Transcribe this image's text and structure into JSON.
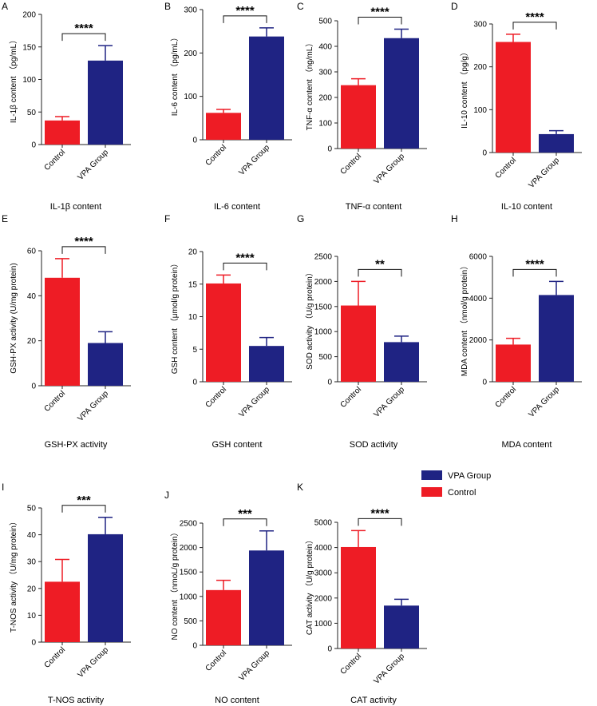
{
  "colors": {
    "control": "#ee1c25",
    "vpa": "#1f2383",
    "axis": "#222222"
  },
  "legend": {
    "items": [
      {
        "label": "VPA Group",
        "color": "#1f2383"
      },
      {
        "label": "Control",
        "color": "#ee1c25"
      }
    ]
  },
  "chart_data": [
    {
      "type": "bar",
      "panel": "A",
      "title": "IL-1β content",
      "ylabel": "IL-1β content  （pg/mL）",
      "categories": [
        "Control",
        "VPA Group"
      ],
      "values": [
        37,
        129
      ],
      "errors": [
        6,
        23
      ],
      "ylim": [
        0,
        200
      ],
      "yticks": [
        "0",
        "50",
        "100",
        "150",
        "200"
      ],
      "significance": "****"
    },
    {
      "type": "bar",
      "panel": "B",
      "title": "IL-6 content",
      "ylabel": "IL-6 content  （pg/mL）",
      "categories": [
        "Control",
        "VPA Group"
      ],
      "values": [
        62,
        238
      ],
      "errors": [
        8,
        20
      ],
      "ylim": [
        0,
        300
      ],
      "yticks": [
        "0",
        "100",
        "200",
        "300"
      ],
      "significance": "****"
    },
    {
      "type": "bar",
      "panel": "C",
      "title": "TNF-α content",
      "ylabel": "TNF-α content  （ng/mL）",
      "categories": [
        "Control",
        "VPA Group"
      ],
      "values": [
        248,
        432
      ],
      "errors": [
        25,
        35
      ],
      "ylim": [
        0,
        500
      ],
      "yticks": [
        "0",
        "100",
        "200",
        "300",
        "400",
        "500"
      ],
      "significance": "****"
    },
    {
      "type": "bar",
      "panel": "D",
      "title": "IL-10 content",
      "ylabel": "IL-10 content  （pg/g）",
      "categories": [
        "Control",
        "VPA Group"
      ],
      "values": [
        258,
        43
      ],
      "errors": [
        18,
        8
      ],
      "ylim": [
        0,
        300
      ],
      "yticks": [
        "0",
        "100",
        "200",
        "300"
      ],
      "significance": "****"
    },
    {
      "type": "bar",
      "panel": "E",
      "title": "GSH-PX activity",
      "ylabel": "GSH-PX activity (U/mg protein)",
      "categories": [
        "Control",
        "VPA Group"
      ],
      "values": [
        48,
        19
      ],
      "errors": [
        8.5,
        5
      ],
      "ylim": [
        0,
        60
      ],
      "yticks": [
        "0",
        "20",
        "40",
        "60"
      ],
      "significance": "****"
    },
    {
      "type": "bar",
      "panel": "F",
      "title": "GSH content",
      "ylabel": "GSH content  （μmol/g protein）",
      "categories": [
        "Control",
        "VPA Group"
      ],
      "values": [
        15.1,
        5.5
      ],
      "errors": [
        1.3,
        1.3
      ],
      "ylim": [
        0,
        20
      ],
      "yticks": [
        "0",
        "5",
        "10",
        "15",
        "20"
      ],
      "significance": "****"
    },
    {
      "type": "bar",
      "panel": "G",
      "title": "SOD activity",
      "ylabel": "SOD activity  （U/g protein）",
      "categories": [
        "Control",
        "VPA Group"
      ],
      "values": [
        1520,
        790
      ],
      "errors": [
        480,
        120
      ],
      "ylim": [
        0,
        2500
      ],
      "yticks": [
        "0",
        "500",
        "1000",
        "1500",
        "2000",
        "2500"
      ],
      "significance": "**"
    },
    {
      "type": "bar",
      "panel": "H",
      "title": "MDA content",
      "ylabel": "MDA content  （nmol/g protein）",
      "categories": [
        "Control",
        "VPA Group"
      ],
      "values": [
        1780,
        4150
      ],
      "errors": [
        300,
        650
      ],
      "ylim": [
        0,
        6000
      ],
      "yticks": [
        "0",
        "2000",
        "4000",
        "6000"
      ],
      "significance": "****"
    },
    {
      "type": "bar",
      "panel": "I",
      "title": "T-NOS activity",
      "ylabel": "T-NOS activity  （U/mg protein）",
      "categories": [
        "Control",
        "VPA Group"
      ],
      "values": [
        22.5,
        40.2
      ],
      "errors": [
        8.3,
        6.3
      ],
      "ylim": [
        0,
        50
      ],
      "yticks": [
        "0",
        "10",
        "20",
        "30",
        "40",
        "50"
      ],
      "significance": "***"
    },
    {
      "type": "bar",
      "panel": "J",
      "title": "NO content",
      "ylabel": "NO content  （nmoL/g protein）",
      "categories": [
        "Control",
        "VPA Group"
      ],
      "values": [
        1130,
        1940
      ],
      "errors": [
        200,
        400
      ],
      "ylim": [
        0,
        2500
      ],
      "yticks": [
        "0",
        "500",
        "1000",
        "1500",
        "2000",
        "2500"
      ],
      "significance": "***"
    },
    {
      "type": "bar",
      "panel": "K",
      "title": "CAT activity",
      "ylabel": "CAT activity  （U/g protein）",
      "categories": [
        "Control",
        "VPA Group"
      ],
      "values": [
        4020,
        1700
      ],
      "errors": [
        650,
        250
      ],
      "ylim": [
        0,
        5000
      ],
      "yticks": [
        "0",
        "1000",
        "2000",
        "3000",
        "4000",
        "5000"
      ],
      "significance": "****"
    }
  ]
}
